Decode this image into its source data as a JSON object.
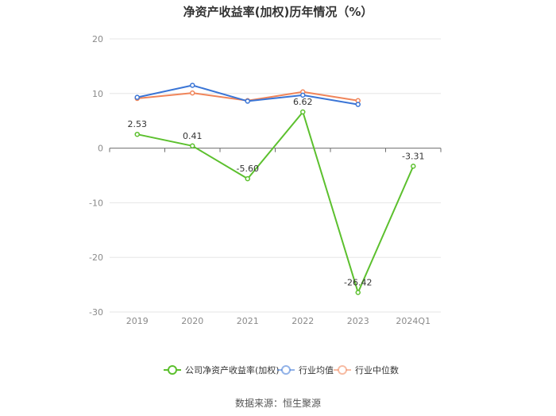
{
  "title": "净资产收益率(加权)历年情况（%）",
  "source": "数据来源：恒生聚源",
  "chart_data": {
    "type": "line",
    "title": "净资产收益率(加权)历年情况（%）",
    "categories": [
      "2019",
      "2020",
      "2021",
      "2022",
      "2023",
      "2024Q1"
    ],
    "ylim": [
      -30,
      20
    ],
    "yticks": [
      20,
      10,
      0,
      -10,
      -20,
      -30
    ],
    "grid": true,
    "legend_position": "bottom",
    "series": [
      {
        "name": "公司净资产收益率(加权)",
        "color": "#5cc02e",
        "values": [
          2.53,
          0.41,
          -5.6,
          6.62,
          -26.42,
          -3.31
        ],
        "labels": [
          "2.53",
          "0.41",
          "-5.60",
          "6.62",
          "-26.42",
          "-3.31"
        ]
      },
      {
        "name": "行业均值",
        "color": "#3a75d6",
        "values": [
          9.3,
          11.5,
          8.6,
          9.7,
          8.0,
          null
        ]
      },
      {
        "name": "行业中位数",
        "color": "#f0855a",
        "values": [
          9.1,
          10.1,
          8.7,
          10.3,
          8.7,
          null
        ]
      }
    ]
  }
}
